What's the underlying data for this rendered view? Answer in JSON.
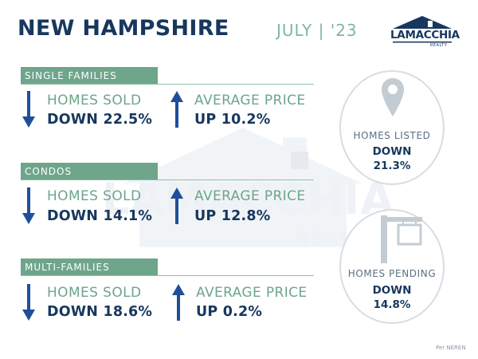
{
  "header": {
    "title": "NEW HAMPSHIRE",
    "date": "JULY | '23"
  },
  "logo": {
    "name": "LAMACCHIA",
    "sub": "REALTY"
  },
  "watermark": {
    "name": "LAMACCHIA",
    "sub": "REALTY"
  },
  "sections": [
    {
      "label": "SINGLE FAMILIES",
      "sold_label": "HOMES SOLD",
      "sold_value": "DOWN 22.5%",
      "price_label": "AVERAGE PRICE",
      "price_value": "UP 10.2%"
    },
    {
      "label": "CONDOS",
      "sold_label": "HOMES SOLD",
      "sold_value": "DOWN 14.1%",
      "price_label": "AVERAGE PRICE",
      "price_value": "UP 12.8%"
    },
    {
      "label": "MULTI-FAMILIES",
      "sold_label": "HOMES SOLD",
      "sold_value": "DOWN 18.6%",
      "price_label": "AVERAGE PRICE",
      "price_value": "UP 0.2%"
    }
  ],
  "listed": {
    "label": "HOMES LISTED",
    "direction": "DOWN",
    "value": "21.3%",
    "icon": "map-pin-icon"
  },
  "pending": {
    "label": "HOMES PENDING",
    "direction": "DOWN",
    "value": "14.8%",
    "icon": "for-sale-sign-icon"
  },
  "source": "Per NEREN",
  "colors": {
    "navy": "#17375e",
    "green": "#6ea58b",
    "arrow": "#1f4f9a"
  }
}
